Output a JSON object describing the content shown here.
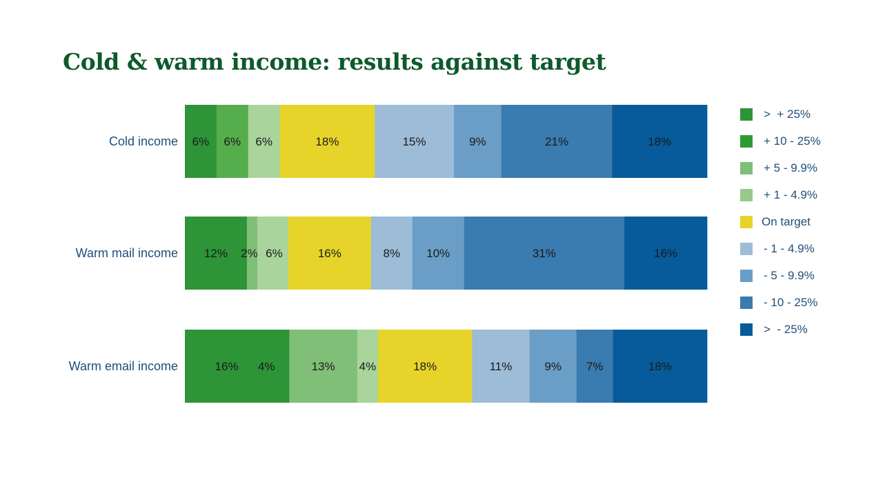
{
  "chart_data": {
    "type": "bar",
    "orientation": "horizontal-stacked-100",
    "title": "Cold & warm income: results against target",
    "categories": [
      "Cold income",
      "Warm mail income",
      "Warm email income"
    ],
    "series": [
      {
        "name": ">  + 25%",
        "color": "#2e9438",
        "values": [
          6,
          12,
          16
        ],
        "labels": [
          "6%",
          "12%",
          "16%"
        ]
      },
      {
        "name": "+ 10 - 25%",
        "color": "#2f9a35",
        "values": [
          6,
          2,
          4
        ],
        "labels": [
          "6%",
          "2%",
          "4%"
        ]
      },
      {
        "name": "+ 5 - 9.9%",
        "color": "#7fbf77",
        "values": [
          0,
          0,
          13
        ],
        "labels": [
          "",
          "",
          "13%"
        ]
      },
      {
        "name": "+ 1 - 4.9%",
        "color": "#a9d49b",
        "values": [
          6,
          6,
          4
        ],
        "labels": [
          "6%",
          "6%",
          "4%"
        ]
      },
      {
        "name": "On target",
        "color": "#e6d42a",
        "values": [
          18,
          16,
          18
        ],
        "labels": [
          "18%",
          "16%",
          "18%"
        ]
      },
      {
        "name": "- 1 - 4.9%",
        "color": "#9dbcd8",
        "values": [
          15,
          8,
          11
        ],
        "labels": [
          "15%",
          "8%",
          "11%"
        ]
      },
      {
        "name": "- 5 - 9.9%",
        "color": "#6a9ec6",
        "values": [
          9,
          10,
          9
        ],
        "labels": [
          "9%",
          "10%",
          "9%"
        ]
      },
      {
        "name": "- 10 - 25%",
        "color": "#3a7bb0",
        "values": [
          21,
          31,
          7
        ],
        "labels": [
          "21%",
          "31%",
          "7%"
        ]
      },
      {
        "name": ">  - 25%",
        "color": "#075b9a",
        "values": [
          18,
          16,
          18
        ],
        "labels": [
          "18%",
          "16%",
          "18%"
        ]
      }
    ],
    "segment_colors": [
      [
        "#2e9438",
        "#56ad4c",
        "#a9d49b",
        "#e6d42a",
        "#9dbcd8",
        "#6a9ec6",
        "#3a7bb0",
        "#075b9a"
      ],
      [
        "#2e9438",
        "#7fbf77",
        "#a9d49b",
        "#e6d42a",
        "#9dbcd8",
        "#6a9ec6",
        "#3a7bb0",
        "#075b9a"
      ],
      [
        "#2e9438",
        "#2e9438",
        "#7fbf77",
        "#a9d49b",
        "#e6d42a",
        "#9dbcd8",
        "#6a9ec6",
        "#3a7bb0",
        "#075b9a"
      ]
    ],
    "segments": [
      {
        "values": [
          6,
          6,
          6,
          18,
          15,
          9,
          21,
          18
        ],
        "labels": [
          "6%",
          "6%",
          "6%",
          "18%",
          "15%",
          "9%",
          "21%",
          "18%"
        ]
      },
      {
        "values": [
          12,
          2,
          6,
          16,
          8,
          10,
          31,
          16
        ],
        "labels": [
          "12%",
          "2%",
          "6%",
          "16%",
          "8%",
          "10%",
          "31%",
          "16%"
        ]
      },
      {
        "values": [
          16,
          4,
          13,
          4,
          18,
          11,
          9,
          7,
          18
        ],
        "labels": [
          "16%",
          "4%",
          "13%",
          "4%",
          "18%",
          "11%",
          "9%",
          "7%",
          "18%"
        ]
      }
    ],
    "xlim": [
      0,
      100
    ],
    "legend_position": "right",
    "grid": false
  },
  "legend": [
    {
      "label": ">  + 25%",
      "color": "#2e9438"
    },
    {
      "label": "+ 10 - 25%",
      "color": "#2f9a35"
    },
    {
      "label": "+ 5 - 9.9%",
      "color": "#7fbf77"
    },
    {
      "label": "+ 1 - 4.9%",
      "color": "#98c98a"
    },
    {
      "label": "On target",
      "color": "#e6d42a"
    },
    {
      "label": "- 1 - 4.9%",
      "color": "#9dbcd8"
    },
    {
      "label": "- 5 - 9.9%",
      "color": "#6a9ec6"
    },
    {
      "label": "- 10 - 25%",
      "color": "#3a7bb0"
    },
    {
      "label": ">  - 25%",
      "color": "#075b9a"
    }
  ]
}
